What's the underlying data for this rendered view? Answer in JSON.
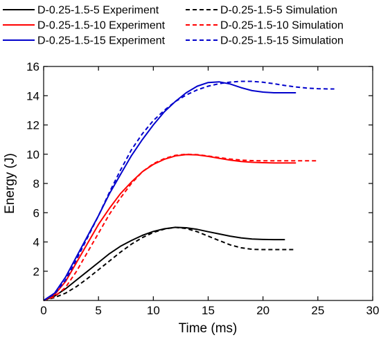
{
  "chart_data": {
    "type": "line",
    "xlabel": "Time (ms)",
    "ylabel": "Energy (J)",
    "xlim": [
      0,
      30
    ],
    "ylim": [
      0,
      16
    ],
    "x_ticks": [
      "0",
      "5",
      "10",
      "15",
      "20",
      "25",
      "30"
    ],
    "y_ticks": [
      "2",
      "4",
      "6",
      "8",
      "10",
      "12",
      "14",
      "16"
    ],
    "grid": false,
    "legend_position": "top",
    "series": [
      {
        "name": "D-0.25-1.5-5 Experiment",
        "color": "#000000",
        "dash": "solid",
        "x": [
          0,
          1,
          2,
          3,
          4,
          5,
          6,
          7,
          8,
          9,
          10,
          11,
          12,
          13,
          14,
          15,
          16,
          17,
          18,
          19,
          20,
          21,
          22
        ],
        "y": [
          0,
          0.3,
          0.8,
          1.4,
          2.0,
          2.6,
          3.2,
          3.7,
          4.1,
          4.45,
          4.72,
          4.9,
          5.0,
          4.97,
          4.86,
          4.7,
          4.55,
          4.4,
          4.28,
          4.2,
          4.17,
          4.16,
          4.16
        ]
      },
      {
        "name": "D-0.25-1.5-5 Simulation",
        "color": "#000000",
        "dash": "dashed",
        "x": [
          0,
          1,
          2,
          3,
          4,
          5,
          6,
          7,
          8,
          9,
          10,
          11,
          12,
          13,
          14,
          15,
          16,
          17,
          18,
          19,
          20,
          21,
          22,
          23
        ],
        "y": [
          0,
          0.2,
          0.5,
          0.95,
          1.5,
          2.1,
          2.7,
          3.3,
          3.85,
          4.3,
          4.65,
          4.88,
          5.0,
          4.92,
          4.7,
          4.4,
          4.1,
          3.8,
          3.6,
          3.5,
          3.48,
          3.48,
          3.48,
          3.48
        ]
      },
      {
        "name": "D-0.25-1.5-10 Experiment",
        "color": "#ff0000",
        "dash": "solid",
        "x": [
          0,
          1,
          2,
          3,
          4,
          5,
          6,
          7,
          8,
          9,
          10,
          11,
          12,
          13,
          14,
          15,
          16,
          17,
          18,
          19,
          20,
          21,
          22,
          23
        ],
        "y": [
          0,
          0.4,
          1.3,
          2.6,
          3.9,
          5.2,
          6.3,
          7.3,
          8.1,
          8.8,
          9.3,
          9.65,
          9.88,
          9.98,
          9.95,
          9.85,
          9.72,
          9.6,
          9.5,
          9.45,
          9.42,
          9.4,
          9.4,
          9.4
        ]
      },
      {
        "name": "D-0.25-1.5-10 Simulation",
        "color": "#ff0000",
        "dash": "dashed",
        "x": [
          0,
          1,
          2,
          3,
          4,
          5,
          6,
          7,
          8,
          9,
          10,
          11,
          12,
          13,
          14,
          15,
          16,
          17,
          18,
          19,
          20,
          21,
          22,
          23,
          24,
          25
        ],
        "y": [
          0,
          0.25,
          0.9,
          2.0,
          3.3,
          4.6,
          5.9,
          7.0,
          8.0,
          8.8,
          9.35,
          9.7,
          9.92,
          10.0,
          9.97,
          9.88,
          9.77,
          9.67,
          9.6,
          9.56,
          9.55,
          9.55,
          9.55,
          9.55,
          9.55,
          9.55
        ]
      },
      {
        "name": "D-0.25-1.5-15 Experiment",
        "color": "#0000cc",
        "dash": "solid",
        "x": [
          0,
          1,
          2,
          3,
          4,
          5,
          6,
          7,
          8,
          9,
          10,
          11,
          12,
          13,
          14,
          15,
          16,
          17,
          18,
          19,
          20,
          21,
          22,
          23
        ],
        "y": [
          0,
          0.5,
          1.6,
          3.0,
          4.4,
          5.8,
          7.3,
          8.6,
          9.9,
          11.0,
          12.0,
          12.9,
          13.6,
          14.2,
          14.65,
          14.9,
          14.95,
          14.8,
          14.55,
          14.35,
          14.25,
          14.2,
          14.2,
          14.2
        ]
      },
      {
        "name": "D-0.25-1.5-15 Simulation",
        "color": "#0000cc",
        "dash": "dashed",
        "x": [
          0,
          1,
          2,
          3,
          4,
          5,
          6,
          7,
          8,
          9,
          10,
          11,
          12,
          13,
          14,
          15,
          16,
          17,
          18,
          19,
          20,
          21,
          22,
          23,
          24,
          25,
          26,
          26.5
        ],
        "y": [
          0,
          0.45,
          1.4,
          2.8,
          4.3,
          5.8,
          7.4,
          8.9,
          10.3,
          11.4,
          12.3,
          13.0,
          13.6,
          14.05,
          14.4,
          14.65,
          14.82,
          14.93,
          14.98,
          14.98,
          14.92,
          14.82,
          14.7,
          14.6,
          14.52,
          14.48,
          14.46,
          14.46
        ]
      }
    ]
  }
}
